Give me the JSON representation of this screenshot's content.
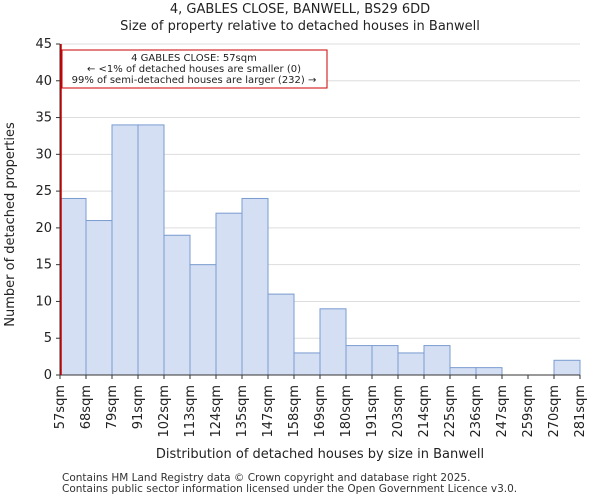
{
  "header": {
    "title": "4, GABLES CLOSE, BANWELL, BS29 6DD",
    "subtitle": "Size of property relative to detached houses in Banwell"
  },
  "footer": {
    "line1": "Contains HM Land Registry data © Crown copyright and database right 2025.",
    "line2": "Contains public sector information licensed under the Open Government Licence v3.0."
  },
  "colors": {
    "bar_fill": "#d4dff3",
    "bar_stroke": "#7a9bd0",
    "marker": "#cc0000",
    "grid": "#dddddd"
  },
  "chart_data": {
    "type": "bar",
    "title": "Size of property relative to detached houses in Banwell",
    "xlabel": "Distribution of detached houses by size in Banwell",
    "ylabel": "Number of detached properties",
    "ylim": [
      0,
      45
    ],
    "yticks": [
      0,
      5,
      10,
      15,
      20,
      25,
      30,
      35,
      40,
      45
    ],
    "grid": true,
    "bin_edges": [
      "57sqm",
      "68sqm",
      "79sqm",
      "91sqm",
      "102sqm",
      "113sqm",
      "124sqm",
      "135sqm",
      "147sqm",
      "158sqm",
      "169sqm",
      "180sqm",
      "191sqm",
      "203sqm",
      "214sqm",
      "225sqm",
      "236sqm",
      "247sqm",
      "259sqm",
      "270sqm",
      "281sqm"
    ],
    "values": [
      24,
      21,
      34,
      34,
      19,
      15,
      22,
      24,
      11,
      3,
      9,
      4,
      4,
      3,
      4,
      1,
      1,
      0,
      0,
      2
    ],
    "marker": {
      "bin_position": 0,
      "label": "4 GABLES CLOSE: 57sqm",
      "line2": "← <1% of detached houses are smaller (0)",
      "line3": "99% of semi-detached houses are larger (232) →"
    }
  }
}
